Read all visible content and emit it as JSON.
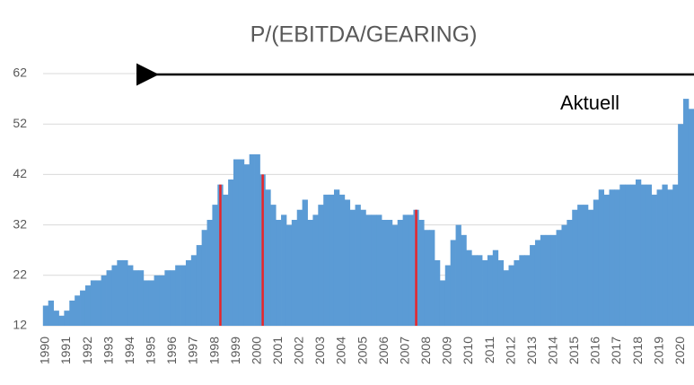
{
  "chart_data": {
    "type": "bar",
    "title": "P/(EBITDA/GEARING)",
    "annotation": "Aktuell",
    "categories": [
      "1990",
      null,
      null,
      null,
      "1991",
      null,
      null,
      null,
      "1992",
      null,
      null,
      null,
      "1993",
      null,
      null,
      null,
      "1994",
      null,
      null,
      null,
      "1995",
      null,
      null,
      null,
      "1996",
      null,
      null,
      null,
      "1997",
      null,
      null,
      null,
      "1998",
      null,
      null,
      null,
      "1999",
      null,
      null,
      null,
      "2000",
      null,
      null,
      null,
      "2001",
      null,
      null,
      null,
      "2002",
      null,
      null,
      null,
      "2003",
      null,
      null,
      null,
      "2004",
      null,
      null,
      null,
      "2005",
      null,
      null,
      null,
      "2006",
      null,
      null,
      null,
      "2007",
      null,
      null,
      null,
      "2008",
      null,
      null,
      null,
      "2009",
      null,
      null,
      null,
      "2010",
      null,
      null,
      null,
      "2011",
      null,
      null,
      null,
      "2012",
      null,
      null,
      null,
      "2013",
      null,
      null,
      null,
      "2014",
      null,
      null,
      null,
      "2015",
      null,
      null,
      null,
      "2016",
      null,
      null,
      null,
      "2017",
      null,
      null,
      null,
      "2018",
      null,
      null,
      null,
      "2019",
      null,
      null,
      null,
      "2020",
      null,
      null
    ],
    "series": [
      {
        "color": "#5b9bd5",
        "values": [
          16,
          17,
          15,
          14,
          15,
          17,
          18,
          19,
          20,
          21,
          21,
          22,
          23,
          24,
          25,
          25,
          24,
          23,
          23,
          21,
          21,
          22,
          22,
          23,
          23,
          24,
          24,
          25,
          26,
          28,
          31,
          33,
          36,
          40,
          38,
          41,
          45,
          45,
          44,
          46,
          46,
          42,
          39,
          36,
          33,
          34,
          32,
          33,
          35,
          37,
          33,
          34,
          36,
          38,
          38,
          39,
          38,
          37,
          35,
          36,
          35,
          34,
          34,
          34,
          33,
          33,
          32,
          33,
          34,
          34,
          35,
          33,
          31,
          31,
          25,
          21,
          24,
          29,
          32,
          30,
          27,
          26,
          26,
          25,
          26,
          27,
          25,
          23,
          24,
          25,
          26,
          26,
          28,
          29,
          30,
          30,
          30,
          31,
          32,
          33,
          35,
          36,
          36,
          35,
          37,
          39,
          38,
          39,
          39,
          40,
          40,
          40,
          41,
          40,
          40,
          38,
          39,
          40,
          39,
          40,
          52,
          57,
          55
        ]
      },
      {
        "color": "#e8252a",
        "values": [
          null,
          null,
          null,
          null,
          null,
          null,
          null,
          null,
          null,
          null,
          null,
          null,
          null,
          null,
          null,
          null,
          null,
          null,
          null,
          null,
          null,
          null,
          null,
          null,
          null,
          null,
          null,
          null,
          null,
          null,
          null,
          null,
          null,
          40,
          null,
          null,
          null,
          null,
          null,
          null,
          null,
          42,
          null,
          null,
          null,
          null,
          null,
          null,
          null,
          null,
          null,
          null,
          null,
          null,
          null,
          null,
          null,
          null,
          null,
          null,
          null,
          null,
          null,
          null,
          null,
          null,
          null,
          null,
          null,
          null,
          35,
          null,
          null,
          null,
          null,
          null,
          null,
          null,
          null,
          null,
          null,
          null,
          null,
          null,
          null,
          null,
          null,
          null,
          null,
          null,
          null,
          null,
          null,
          null,
          null,
          null,
          null,
          null,
          null,
          null,
          null,
          null,
          null,
          null,
          null,
          null,
          null,
          null,
          null,
          null,
          null,
          null,
          null,
          null,
          null,
          null,
          null,
          null,
          null,
          null,
          null,
          null,
          null
        ]
      }
    ],
    "ylim": [
      12,
      62
    ],
    "yticks": [
      12,
      22,
      32,
      42,
      52,
      62
    ],
    "grid": true
  }
}
